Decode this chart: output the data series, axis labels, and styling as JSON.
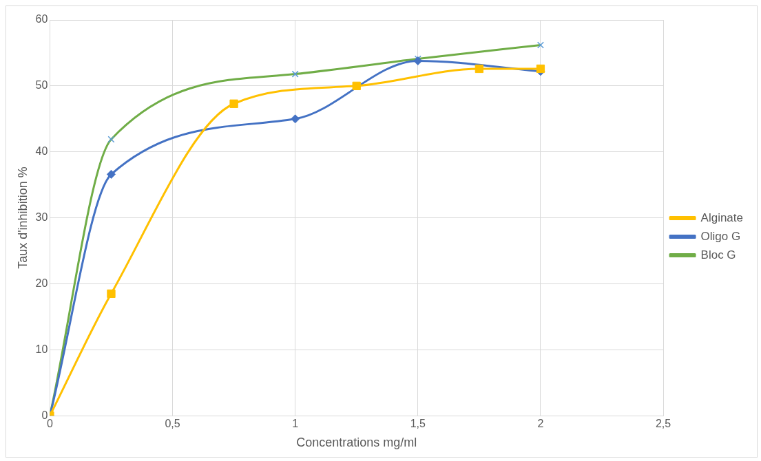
{
  "chart_data": {
    "type": "line",
    "xlabel": "Concentrations mg/ml",
    "ylabel": "Taux d'inhibition %",
    "xlim": [
      0,
      2.5
    ],
    "xticks": [
      {
        "value": 0,
        "label": "0"
      },
      {
        "value": 0.5,
        "label": "0,5"
      },
      {
        "value": 1,
        "label": "1"
      },
      {
        "value": 1.5,
        "label": "1,5"
      },
      {
        "value": 2,
        "label": "2"
      },
      {
        "value": 2.5,
        "label": "2,5"
      }
    ],
    "ylim": [
      0,
      60
    ],
    "yticks": [
      0,
      10,
      20,
      30,
      40,
      50,
      60
    ],
    "grid": true,
    "legend": "right",
    "series": [
      {
        "name": "Bloc G",
        "color": "#70ad47",
        "marker": "cross",
        "x": [
          0,
          0.25,
          1,
          1.5,
          2
        ],
        "values": [
          0,
          41.9,
          51.8,
          54.1,
          56.2
        ]
      },
      {
        "name": "Oligo G",
        "color": "#4472c4",
        "marker": "diamond",
        "x": [
          0,
          0.25,
          1,
          1.5,
          2
        ],
        "values": [
          0,
          36.6,
          45.0,
          53.8,
          52.2
        ]
      },
      {
        "name": "Alginate",
        "color": "#ffc000",
        "marker": "square",
        "x": [
          0,
          0.25,
          0.75,
          1.25,
          1.75,
          2
        ],
        "values": [
          0,
          18.5,
          47.3,
          50.0,
          52.6,
          52.6
        ]
      }
    ]
  }
}
